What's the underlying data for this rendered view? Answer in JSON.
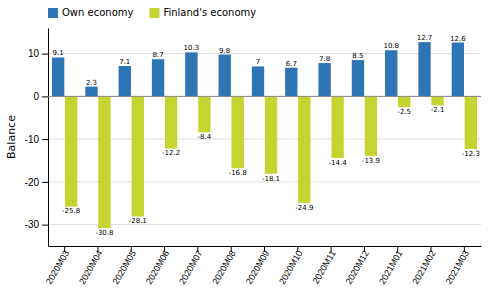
{
  "chart_data": {
    "type": "bar",
    "ylabel": "Balance",
    "categories": [
      "2020M03",
      "2020M04",
      "2020M05",
      "2020M06",
      "2020M07",
      "2020M08",
      "2020M09",
      "2020M10",
      "2020M11",
      "2020M12",
      "2021M01",
      "2021M02",
      "2021M03"
    ],
    "series": [
      {
        "name": "Own economy",
        "color": "#2E75B6",
        "values": [
          9.1,
          2.3,
          7.1,
          8.7,
          10.3,
          9.8,
          7.0,
          6.7,
          7.8,
          8.5,
          10.8,
          12.7,
          12.6
        ]
      },
      {
        "name": "Finland's economy",
        "color": "#C5D430",
        "values": [
          -25.8,
          -30.8,
          -28.1,
          -12.2,
          -8.4,
          -16.8,
          -18.1,
          -24.9,
          -14.4,
          -13.9,
          -2.5,
          -2.1,
          -12.3
        ]
      }
    ],
    "ylim": [
      -35,
      16
    ],
    "yticks": [
      -30,
      -20,
      -10,
      0,
      10
    ],
    "grid": true,
    "legend": "top",
    "data_labels": true
  }
}
